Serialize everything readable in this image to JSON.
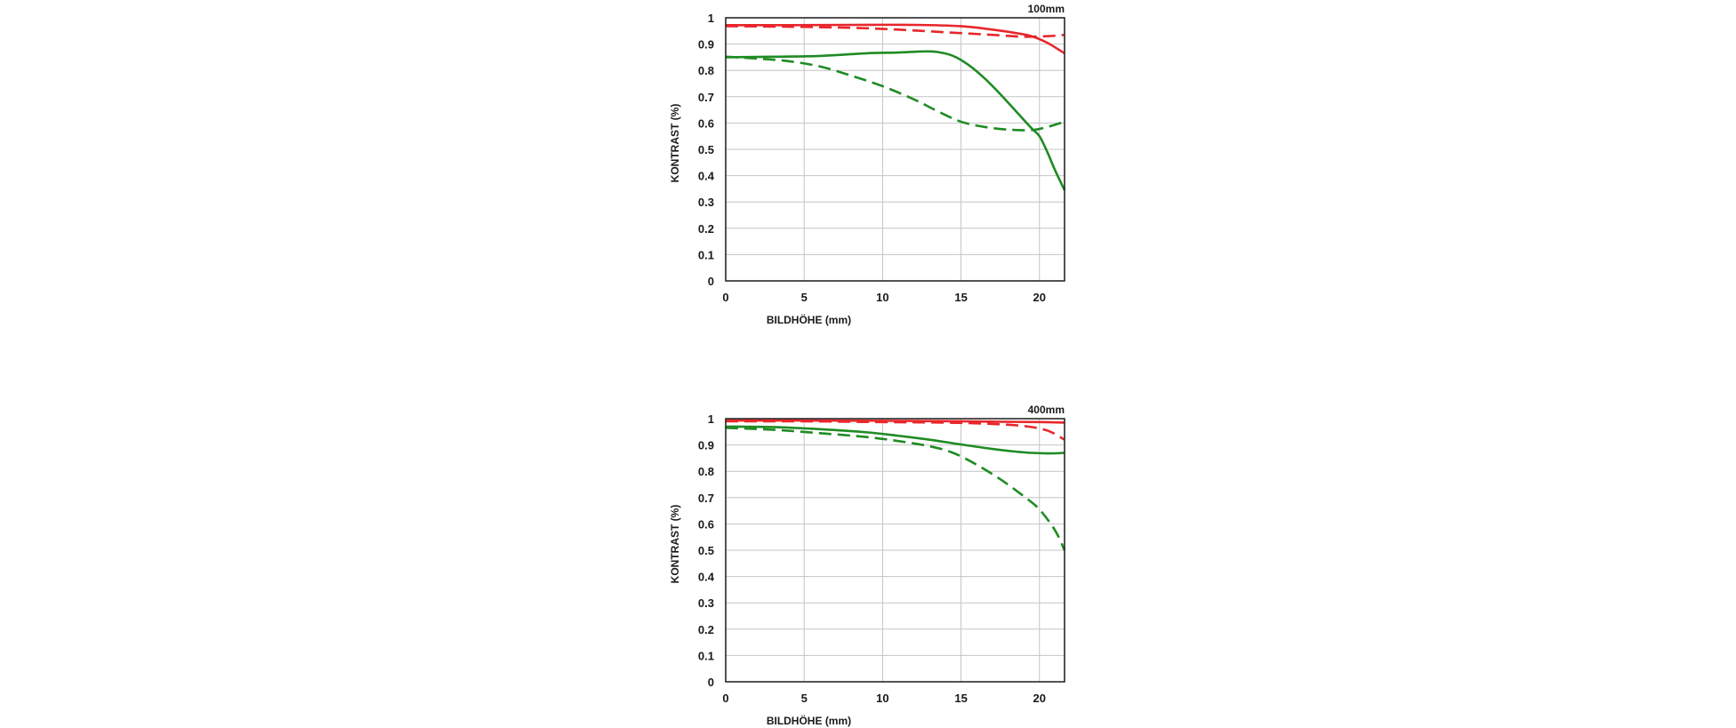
{
  "chart_data": [
    {
      "type": "line",
      "title": "100mm",
      "xlabel": "BILDHÖHE (mm)",
      "ylabel": "KONTRAST (%)",
      "xlim": [
        0,
        21.6
      ],
      "ylim": [
        0,
        1
      ],
      "xticks": [
        0,
        5,
        10,
        15,
        20
      ],
      "yticks": [
        0,
        0.1,
        0.2,
        0.3,
        0.4,
        0.5,
        0.6,
        0.7,
        0.8,
        0.9,
        1
      ],
      "xtick_labels": [
        "0",
        "5",
        "10",
        "15",
        "20"
      ],
      "ytick_labels": [
        "0",
        "0.1",
        "0.2",
        "0.3",
        "0.4",
        "0.5",
        "0.6",
        "0.7",
        "0.8",
        "0.9",
        "1"
      ],
      "grid": true,
      "series": [
        {
          "color": "#e8262b",
          "style": "solid",
          "points": [
            [
              0,
              0.972
            ],
            [
              4,
              0.972
            ],
            [
              8,
              0.973
            ],
            [
              12,
              0.973
            ],
            [
              15,
              0.968
            ],
            [
              17,
              0.955
            ],
            [
              18.5,
              0.942
            ],
            [
              19.5,
              0.93
            ],
            [
              20.5,
              0.905
            ],
            [
              21.6,
              0.865
            ]
          ]
        },
        {
          "color": "#e8262b",
          "style": "dashed",
          "points": [
            [
              0,
              0.968
            ],
            [
              4,
              0.966
            ],
            [
              8,
              0.962
            ],
            [
              11,
              0.955
            ],
            [
              14,
              0.945
            ],
            [
              17,
              0.935
            ],
            [
              19,
              0.928
            ],
            [
              20.5,
              0.93
            ],
            [
              21.6,
              0.935
            ]
          ]
        },
        {
          "color": "#1f8b24",
          "style": "solid",
          "points": [
            [
              0,
              0.85
            ],
            [
              3,
              0.852
            ],
            [
              6,
              0.855
            ],
            [
              9,
              0.865
            ],
            [
              11,
              0.868
            ],
            [
              12.5,
              0.872
            ],
            [
              13.5,
              0.87
            ],
            [
              14.5,
              0.855
            ],
            [
              15.5,
              0.82
            ],
            [
              16.5,
              0.77
            ],
            [
              17.5,
              0.71
            ],
            [
              18.5,
              0.645
            ],
            [
              19.5,
              0.58
            ],
            [
              20,
              0.55
            ],
            [
              20.5,
              0.49
            ],
            [
              21,
              0.42
            ],
            [
              21.6,
              0.345
            ]
          ]
        },
        {
          "color": "#1f8b24",
          "style": "dashed",
          "points": [
            [
              0,
              0.852
            ],
            [
              2,
              0.845
            ],
            [
              4,
              0.835
            ],
            [
              6,
              0.815
            ],
            [
              8,
              0.78
            ],
            [
              10,
              0.74
            ],
            [
              12,
              0.69
            ],
            [
              13.5,
              0.645
            ],
            [
              15,
              0.605
            ],
            [
              16.5,
              0.585
            ],
            [
              18,
              0.575
            ],
            [
              19.5,
              0.573
            ],
            [
              20.5,
              0.585
            ],
            [
              21.6,
              0.605
            ]
          ]
        }
      ]
    },
    {
      "type": "line",
      "title": "400mm",
      "xlabel": "BILDHÖHE (mm)",
      "ylabel": "KONTRAST (%)",
      "xlim": [
        0,
        21.6
      ],
      "ylim": [
        0,
        1
      ],
      "xticks": [
        0,
        5,
        10,
        15,
        20
      ],
      "yticks": [
        0,
        0.1,
        0.2,
        0.3,
        0.4,
        0.5,
        0.6,
        0.7,
        0.8,
        0.9,
        1
      ],
      "xtick_labels": [
        "0",
        "5",
        "10",
        "15",
        "20"
      ],
      "ytick_labels": [
        "0",
        "0.1",
        "0.2",
        "0.3",
        "0.4",
        "0.5",
        "0.6",
        "0.7",
        "0.8",
        "0.9",
        "1"
      ],
      "grid": true,
      "series": [
        {
          "color": "#e8262b",
          "style": "solid",
          "points": [
            [
              0,
              0.993
            ],
            [
              5,
              0.993
            ],
            [
              10,
              0.992
            ],
            [
              15,
              0.99
            ],
            [
              18,
              0.988
            ],
            [
              20,
              0.987
            ],
            [
              21.6,
              0.985
            ]
          ]
        },
        {
          "color": "#e8262b",
          "style": "dashed",
          "points": [
            [
              0,
              0.99
            ],
            [
              5,
              0.99
            ],
            [
              10,
              0.987
            ],
            [
              14,
              0.985
            ],
            [
              17,
              0.98
            ],
            [
              19,
              0.972
            ],
            [
              20.5,
              0.955
            ],
            [
              21.6,
              0.92
            ]
          ]
        },
        {
          "color": "#1f8b24",
          "style": "solid",
          "points": [
            [
              0,
              0.97
            ],
            [
              3,
              0.968
            ],
            [
              6,
              0.96
            ],
            [
              9,
              0.948
            ],
            [
              11,
              0.935
            ],
            [
              13,
              0.92
            ],
            [
              15,
              0.902
            ],
            [
              17,
              0.885
            ],
            [
              19,
              0.872
            ],
            [
              20.5,
              0.868
            ],
            [
              21.6,
              0.87
            ]
          ]
        },
        {
          "color": "#1f8b24",
          "style": "dashed",
          "points": [
            [
              0,
              0.965
            ],
            [
              3,
              0.958
            ],
            [
              6,
              0.945
            ],
            [
              9,
              0.93
            ],
            [
              11,
              0.915
            ],
            [
              13,
              0.895
            ],
            [
              14.5,
              0.87
            ],
            [
              16,
              0.825
            ],
            [
              17.5,
              0.77
            ],
            [
              19,
              0.705
            ],
            [
              20,
              0.655
            ],
            [
              21,
              0.575
            ],
            [
              21.6,
              0.5
            ]
          ]
        }
      ]
    }
  ]
}
